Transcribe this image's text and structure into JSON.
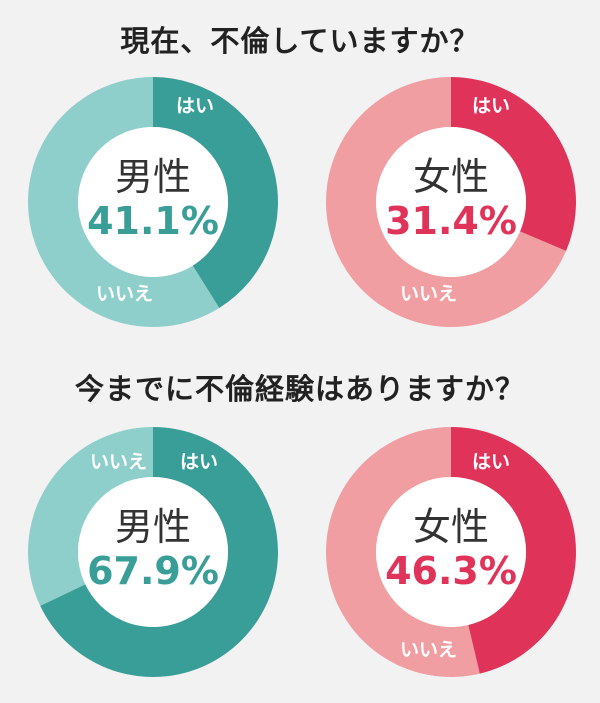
{
  "sections": [
    {
      "title": "現在、不倫していますか？"
    },
    {
      "title": "今までに不倫経験はありますか？"
    }
  ],
  "charts": [
    {
      "gender": "男性",
      "value_text": "41.1%",
      "yes_label": "はい",
      "no_label": "いいえ"
    },
    {
      "gender": "女性",
      "value_text": "31.4%",
      "yes_label": "はい",
      "no_label": "いいえ"
    },
    {
      "gender": "男性",
      "value_text": "67.9%",
      "yes_label": "はい",
      "no_label": "いいえ"
    },
    {
      "gender": "女性",
      "value_text": "46.3%",
      "yes_label": "はい",
      "no_label": "いいえ"
    }
  ],
  "colors": {
    "male_yes": "#3a9e98",
    "male_no": "#8fcfcb",
    "female_yes": "#e0335a",
    "female_no": "#f19ea3",
    "female_text": "#e0335a",
    "male_text": "#3a9e98"
  },
  "chart_data": [
    {
      "type": "pie",
      "title": "現在、不倫していますか？",
      "series_label": "男性",
      "categories": [
        "はい",
        "いいえ"
      ],
      "values": [
        41.1,
        58.9
      ]
    },
    {
      "type": "pie",
      "title": "現在、不倫していますか？",
      "series_label": "女性",
      "categories": [
        "はい",
        "いいえ"
      ],
      "values": [
        31.4,
        68.6
      ]
    },
    {
      "type": "pie",
      "title": "今までに不倫経験はありますか？",
      "series_label": "男性",
      "categories": [
        "はい",
        "いいえ"
      ],
      "values": [
        67.9,
        32.1
      ]
    },
    {
      "type": "pie",
      "title": "今までに不倫経験はありますか？",
      "series_label": "女性",
      "categories": [
        "はい",
        "いいえ"
      ],
      "values": [
        46.3,
        53.7
      ]
    }
  ]
}
